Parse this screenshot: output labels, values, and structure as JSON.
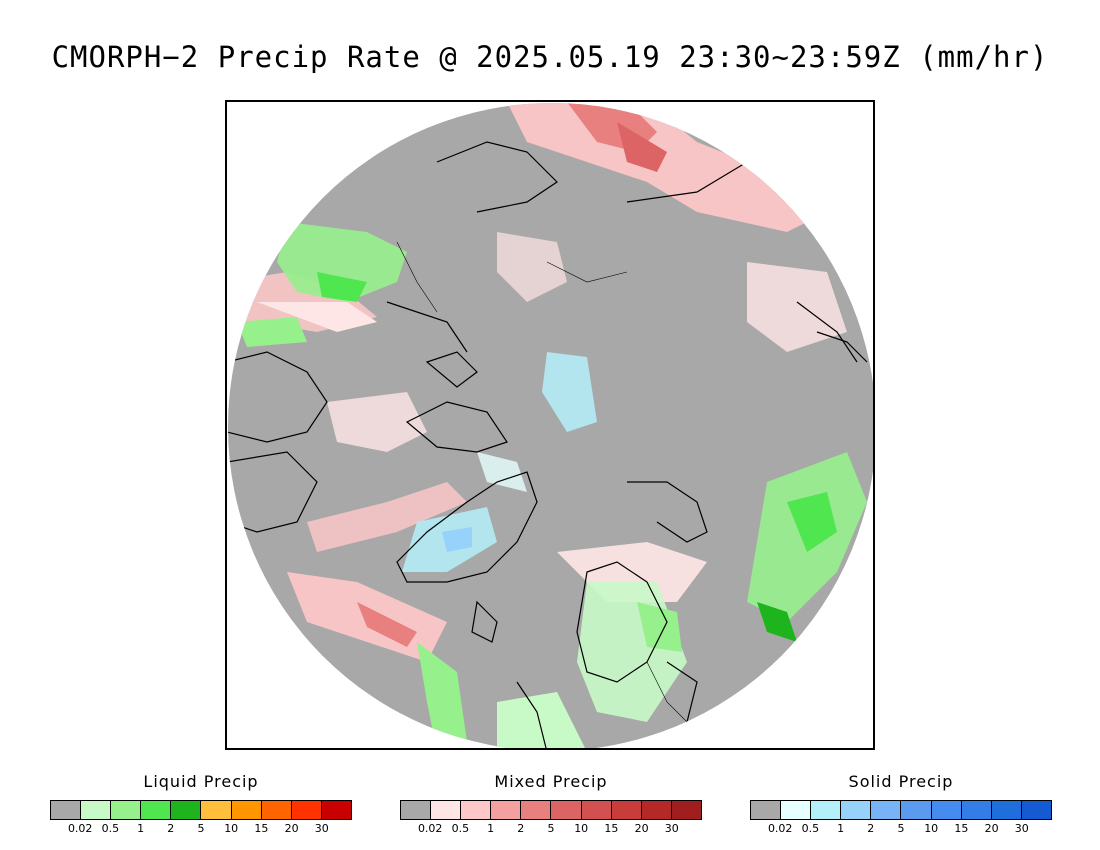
{
  "title": "CMORPH−2 Precip Rate @ 2025.05.19 23:30~23:59Z (mm/hr)",
  "map": {
    "projection": "north polar stereographic",
    "background_color": "#a8a8a8",
    "outside_color": "#ffffff"
  },
  "legends": [
    {
      "title": "Liquid Precip",
      "colors": [
        "#a8a8a8",
        "#c8fac8",
        "#96f08c",
        "#50e650",
        "#1eb41e",
        "#ffbe3c",
        "#ff9600",
        "#ff6400",
        "#ff3200",
        "#c80000"
      ],
      "ticks": [
        "0.02",
        "0.5",
        "1",
        "2",
        "5",
        "10",
        "15",
        "20",
        "30"
      ]
    },
    {
      "title": "Mixed Precip",
      "colors": [
        "#a8a8a8",
        "#ffe6e6",
        "#ffc8c8",
        "#f5a0a0",
        "#e88080",
        "#dc6464",
        "#d25050",
        "#c83c3c",
        "#b42828",
        "#a01e1e"
      ],
      "ticks": [
        "0.02",
        "0.5",
        "1",
        "2",
        "5",
        "10",
        "15",
        "20",
        "30"
      ]
    },
    {
      "title": "Solid Precip",
      "colors": [
        "#a8a8a8",
        "#e6ffff",
        "#b4f0fa",
        "#96d2fa",
        "#78b4f5",
        "#5a9bf0",
        "#468cf0",
        "#327de6",
        "#1e6edc",
        "#145ad2"
      ],
      "ticks": [
        "0.02",
        "0.5",
        "1",
        "2",
        "5",
        "10",
        "15",
        "20",
        "30"
      ]
    }
  ]
}
